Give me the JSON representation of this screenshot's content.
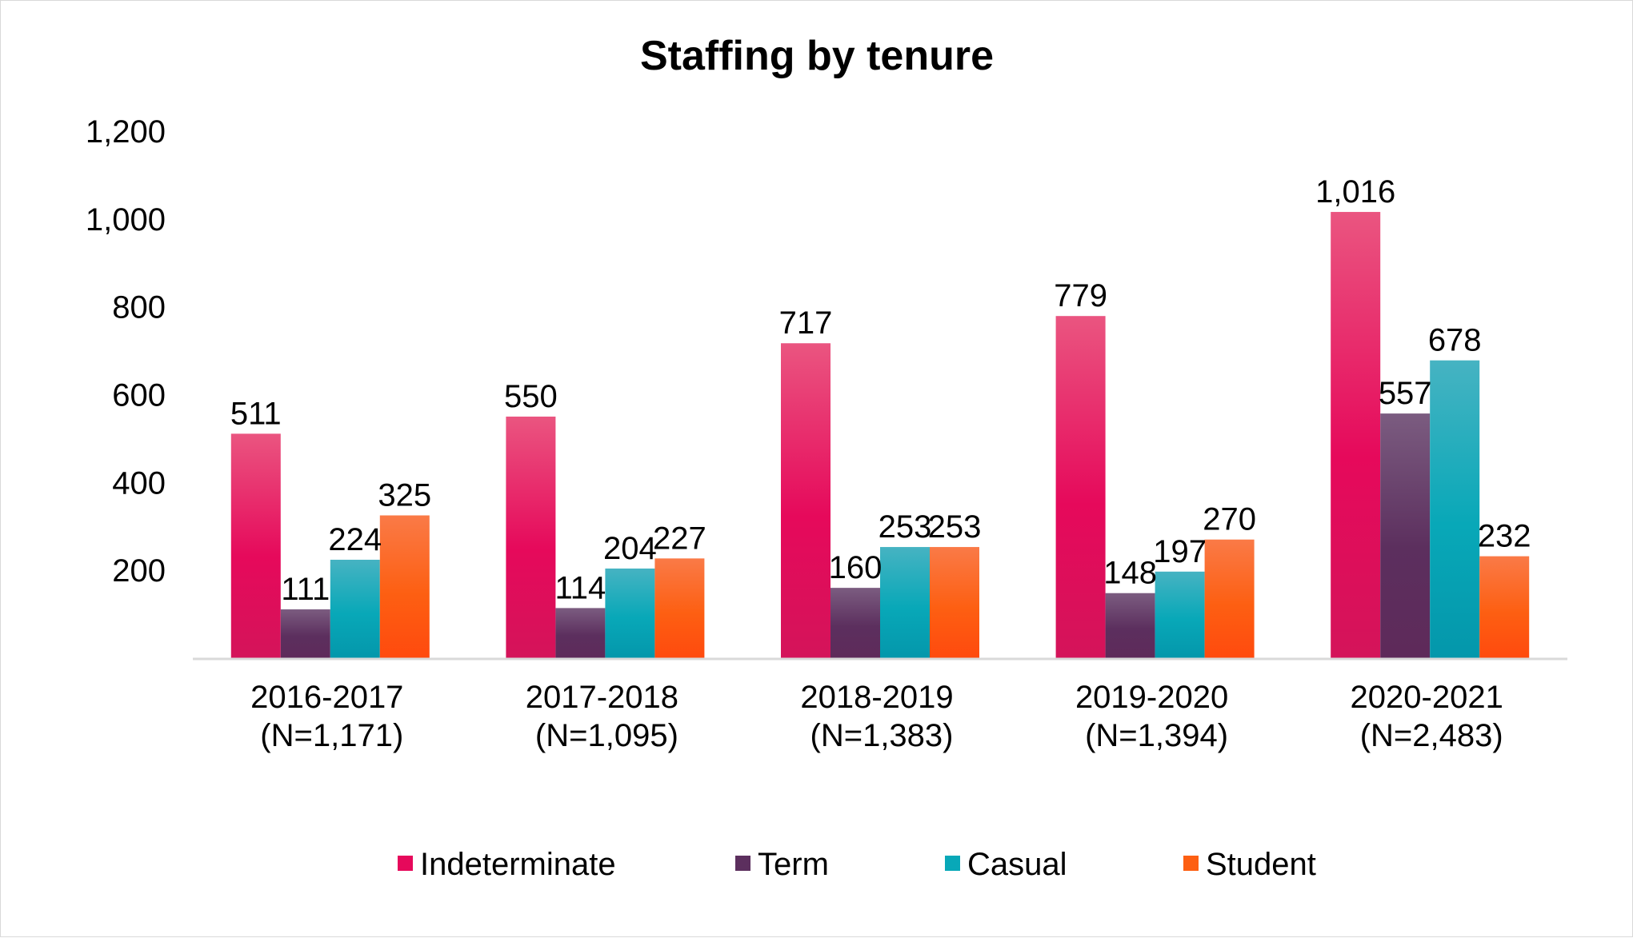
{
  "chart_data": {
    "type": "bar",
    "title": "Staffing by tenure",
    "xlabel": "",
    "ylabel": "",
    "ylim": [
      0,
      1200
    ],
    "yticks": [
      200,
      400,
      600,
      800,
      1000,
      1200
    ],
    "ytick_labels": [
      "200",
      "400",
      "600",
      "800",
      "1,000",
      "1,200"
    ],
    "grid": false,
    "legend_position": "bottom",
    "categories": [
      {
        "period": "2016-2017",
        "n": "(N=1,171)"
      },
      {
        "period": "2017-2018",
        "n": "(N=1,095)"
      },
      {
        "period": "2018-2019",
        "n": "(N=1,383)"
      },
      {
        "period": "2019-2020",
        "n": "(N=1,394)"
      },
      {
        "period": "2020-2021",
        "n": "(N=2,483)"
      }
    ],
    "series": [
      {
        "name": "Indeterminate",
        "key": "indeterminate",
        "color_top": "#ea5580",
        "color_mid": "#e6095b",
        "color_bottom": "#d4145a",
        "legend_color": "#e6095b",
        "values": [
          511,
          550,
          717,
          779,
          1016
        ],
        "labels": [
          "511",
          "550",
          "717",
          "779",
          "1,016"
        ]
      },
      {
        "name": "Term",
        "key": "term",
        "color_top": "#7b5c80",
        "color_mid": "#5c2f5e",
        "color_bottom": "#5e2a5a",
        "legend_color": "#5c2f5e",
        "values": [
          111,
          114,
          160,
          148,
          557
        ],
        "labels": [
          "111",
          "114",
          "160",
          "148",
          "557"
        ]
      },
      {
        "name": "Casual",
        "key": "casual",
        "color_top": "#46b3c2",
        "color_mid": "#08a8b8",
        "color_bottom": "#0497ab",
        "legend_color": "#08a8b8",
        "values": [
          224,
          204,
          253,
          197,
          678
        ],
        "labels": [
          "224",
          "204",
          "253",
          "197",
          "678"
        ]
      },
      {
        "name": "Student",
        "key": "student",
        "color_top": "#fa7a47",
        "color_mid": "#fd5f12",
        "color_bottom": "#ff4a0e",
        "legend_color": "#fd5f12",
        "values": [
          325,
          227,
          253,
          270,
          232
        ],
        "labels": [
          "325",
          "227",
          "253",
          "270",
          "232"
        ]
      }
    ],
    "axis_color": "#d9d9d9"
  }
}
